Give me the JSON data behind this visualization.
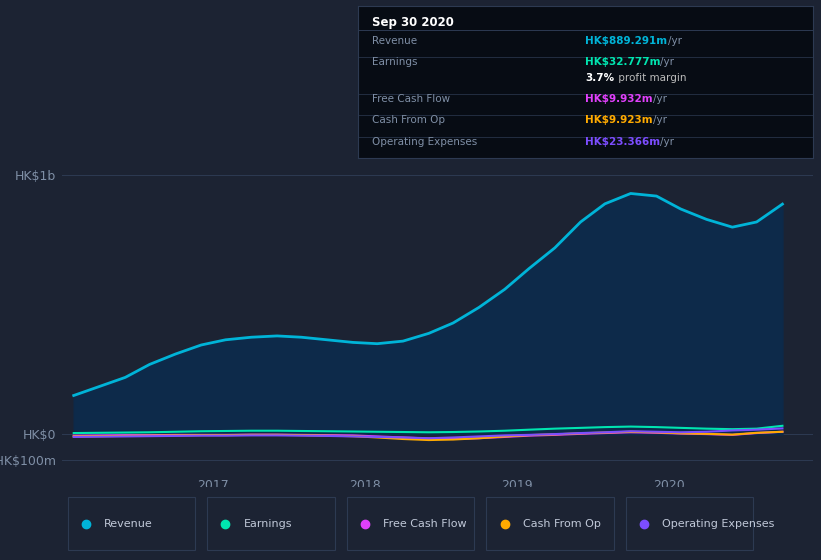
{
  "bg_color": "#1c2333",
  "plot_bg_color": "#1c2333",
  "grid_color": "#2d3a52",
  "text_color": "#7f8fa6",
  "revenue_line_color": "#00b4d8",
  "revenue_fill_color": "#0d2a4a",
  "earnings_color": "#00e5b0",
  "fcf_color": "#e040fb",
  "cfop_color": "#ffaa00",
  "opex_color": "#7c4dff",
  "x": [
    2016.08,
    2016.25,
    2016.42,
    2016.58,
    2016.75,
    2016.92,
    2017.08,
    2017.25,
    2017.42,
    2017.58,
    2017.75,
    2017.92,
    2018.08,
    2018.25,
    2018.42,
    2018.58,
    2018.75,
    2018.92,
    2019.08,
    2019.25,
    2019.42,
    2019.58,
    2019.75,
    2019.92,
    2020.08,
    2020.25,
    2020.42,
    2020.58,
    2020.75
  ],
  "revenue": [
    150,
    185,
    220,
    270,
    310,
    345,
    365,
    375,
    380,
    375,
    365,
    355,
    350,
    360,
    390,
    430,
    490,
    560,
    640,
    720,
    820,
    890,
    930,
    920,
    870,
    830,
    800,
    820,
    889
  ],
  "earnings": [
    5,
    6,
    7,
    8,
    10,
    12,
    13,
    14,
    14,
    13,
    12,
    11,
    10,
    9,
    8,
    9,
    11,
    14,
    18,
    22,
    25,
    28,
    30,
    28,
    25,
    22,
    20,
    22,
    33
  ],
  "free_cash_flow": [
    -5,
    -4,
    -3,
    -3,
    -2,
    -2,
    -2,
    -1,
    -1,
    -2,
    -3,
    -4,
    -8,
    -12,
    -16,
    -18,
    -15,
    -10,
    -5,
    -2,
    2,
    5,
    8,
    6,
    3,
    1,
    -2,
    5,
    10
  ],
  "cash_from_op": [
    -8,
    -7,
    -6,
    -5,
    -4,
    -3,
    -3,
    -2,
    -2,
    -3,
    -5,
    -7,
    -12,
    -18,
    -22,
    -20,
    -15,
    -8,
    -3,
    0,
    4,
    7,
    10,
    8,
    4,
    2,
    -1,
    6,
    10
  ],
  "operating_expenses": [
    -10,
    -9,
    -8,
    -7,
    -6,
    -5,
    -5,
    -4,
    -4,
    -5,
    -6,
    -8,
    -10,
    -12,
    -15,
    -12,
    -8,
    -4,
    -2,
    1,
    5,
    8,
    12,
    10,
    8,
    10,
    15,
    18,
    23
  ],
  "xlim": [
    2016.0,
    2020.95
  ],
  "ylim": [
    -150,
    1050
  ],
  "ytick_positions": [
    -100,
    0,
    1000
  ],
  "ytick_labels": [
    "-HK$100m",
    "HK$0",
    "HK$1b"
  ],
  "xtick_positions": [
    2017.0,
    2018.0,
    2019.0,
    2020.0
  ],
  "xtick_labels": [
    "2017",
    "2018",
    "2019",
    "2020"
  ],
  "info_box": {
    "title": "Sep 30 2020",
    "rows": [
      {
        "label": "Revenue",
        "value": "HK$889.291m",
        "unit": "/yr",
        "value_color": "#00b4d8",
        "sep_after": true
      },
      {
        "label": "Earnings",
        "value": "HK$32.777m",
        "unit": "/yr",
        "value_color": "#00e5b0",
        "sep_after": false
      },
      {
        "label": "",
        "value": "3.7%",
        "unit": " profit margin",
        "value_color": "#ffffff",
        "sep_after": true
      },
      {
        "label": "Free Cash Flow",
        "value": "HK$9.932m",
        "unit": "/yr",
        "value_color": "#e040fb",
        "sep_after": true
      },
      {
        "label": "Cash From Op",
        "value": "HK$9.923m",
        "unit": "/yr",
        "value_color": "#ffaa00",
        "sep_after": true
      },
      {
        "label": "Operating Expenses",
        "value": "HK$23.366m",
        "unit": "/yr",
        "value_color": "#7c4dff",
        "sep_after": false
      }
    ],
    "bg_color": "#070c14",
    "border_color": "#2d3a52",
    "text_color": "#7f8fa6",
    "title_color": "#ffffff"
  },
  "legend_items": [
    {
      "label": "Revenue",
      "color": "#00b4d8"
    },
    {
      "label": "Earnings",
      "color": "#00e5b0"
    },
    {
      "label": "Free Cash Flow",
      "color": "#e040fb"
    },
    {
      "label": "Cash From Op",
      "color": "#ffaa00"
    },
    {
      "label": "Operating Expenses",
      "color": "#7c4dff"
    }
  ]
}
